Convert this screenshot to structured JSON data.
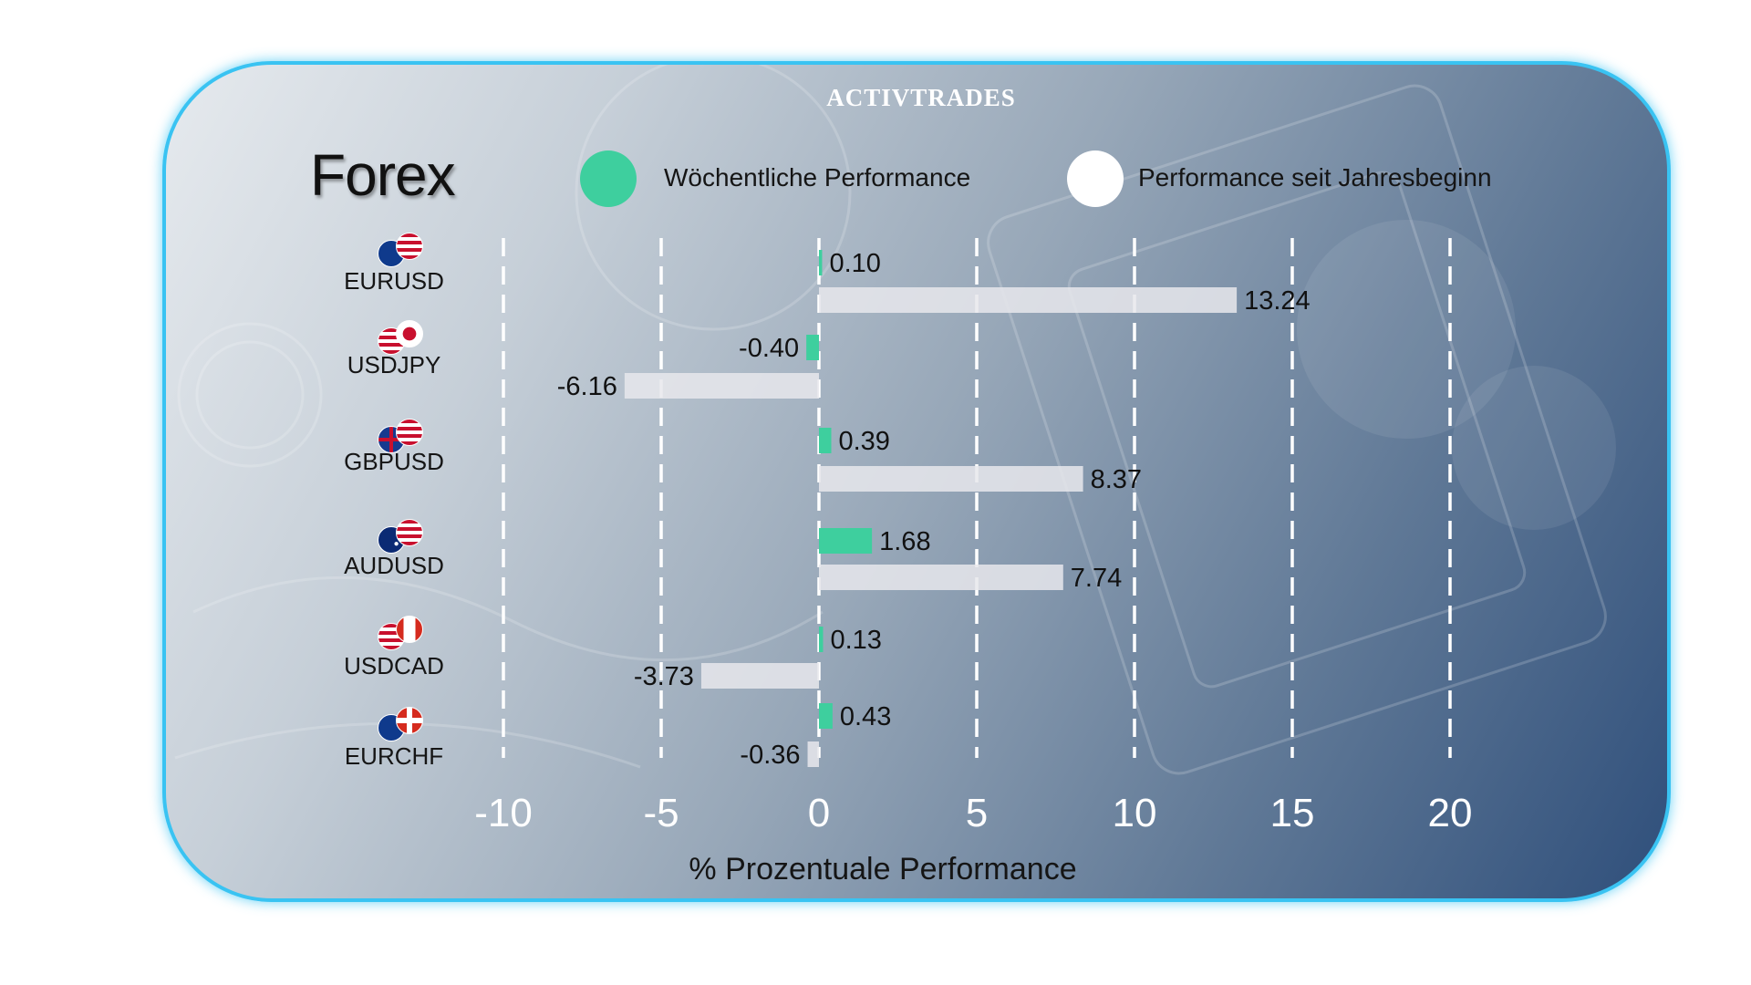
{
  "brand": "ACTIVTRADES",
  "colors": {
    "weekly": "#3ecf9e",
    "ytd": "#e8e8ec",
    "frame": "#39c3f2"
  },
  "chart_data": {
    "type": "bar",
    "orientation": "horizontal",
    "title": "Forex",
    "categories": [
      "EURUSD",
      "USDJPY",
      "GBPUSD",
      "AUDUSD",
      "USDCAD",
      "EURCHF"
    ],
    "series": [
      {
        "name": "Wöchentliche Performance",
        "values": [
          0.1,
          -0.4,
          0.39,
          1.68,
          0.13,
          0.43
        ]
      },
      {
        "name": "Performance seit Jahresbeginn",
        "values": [
          13.24,
          -6.16,
          8.37,
          7.74,
          -3.73,
          -0.36
        ]
      }
    ],
    "value_labels": [
      [
        "0.10",
        "-0.40",
        "0.39",
        "1.68",
        "0.13",
        "0.43"
      ],
      [
        "13.24",
        "-6.16",
        "8.37",
        "7.74",
        "-3.73",
        "-0.36"
      ]
    ],
    "xlabel": "% Prozentuale Performance",
    "xlim": [
      -10,
      20
    ],
    "xticks": [
      -10,
      -5,
      0,
      5,
      10,
      15,
      20
    ],
    "grid": "vertical dashed",
    "legend_position": "top",
    "flags": [
      [
        "eu-flag-icon",
        "us-flag-icon"
      ],
      [
        "us-flag-icon",
        "jp-flag-icon"
      ],
      [
        "gb-flag-icon",
        "us-flag-icon"
      ],
      [
        "au-flag-icon",
        "us-flag-icon"
      ],
      [
        "us-flag-icon",
        "ca-flag-icon"
      ],
      [
        "eu-flag-icon",
        "ch-flag-icon"
      ]
    ]
  }
}
